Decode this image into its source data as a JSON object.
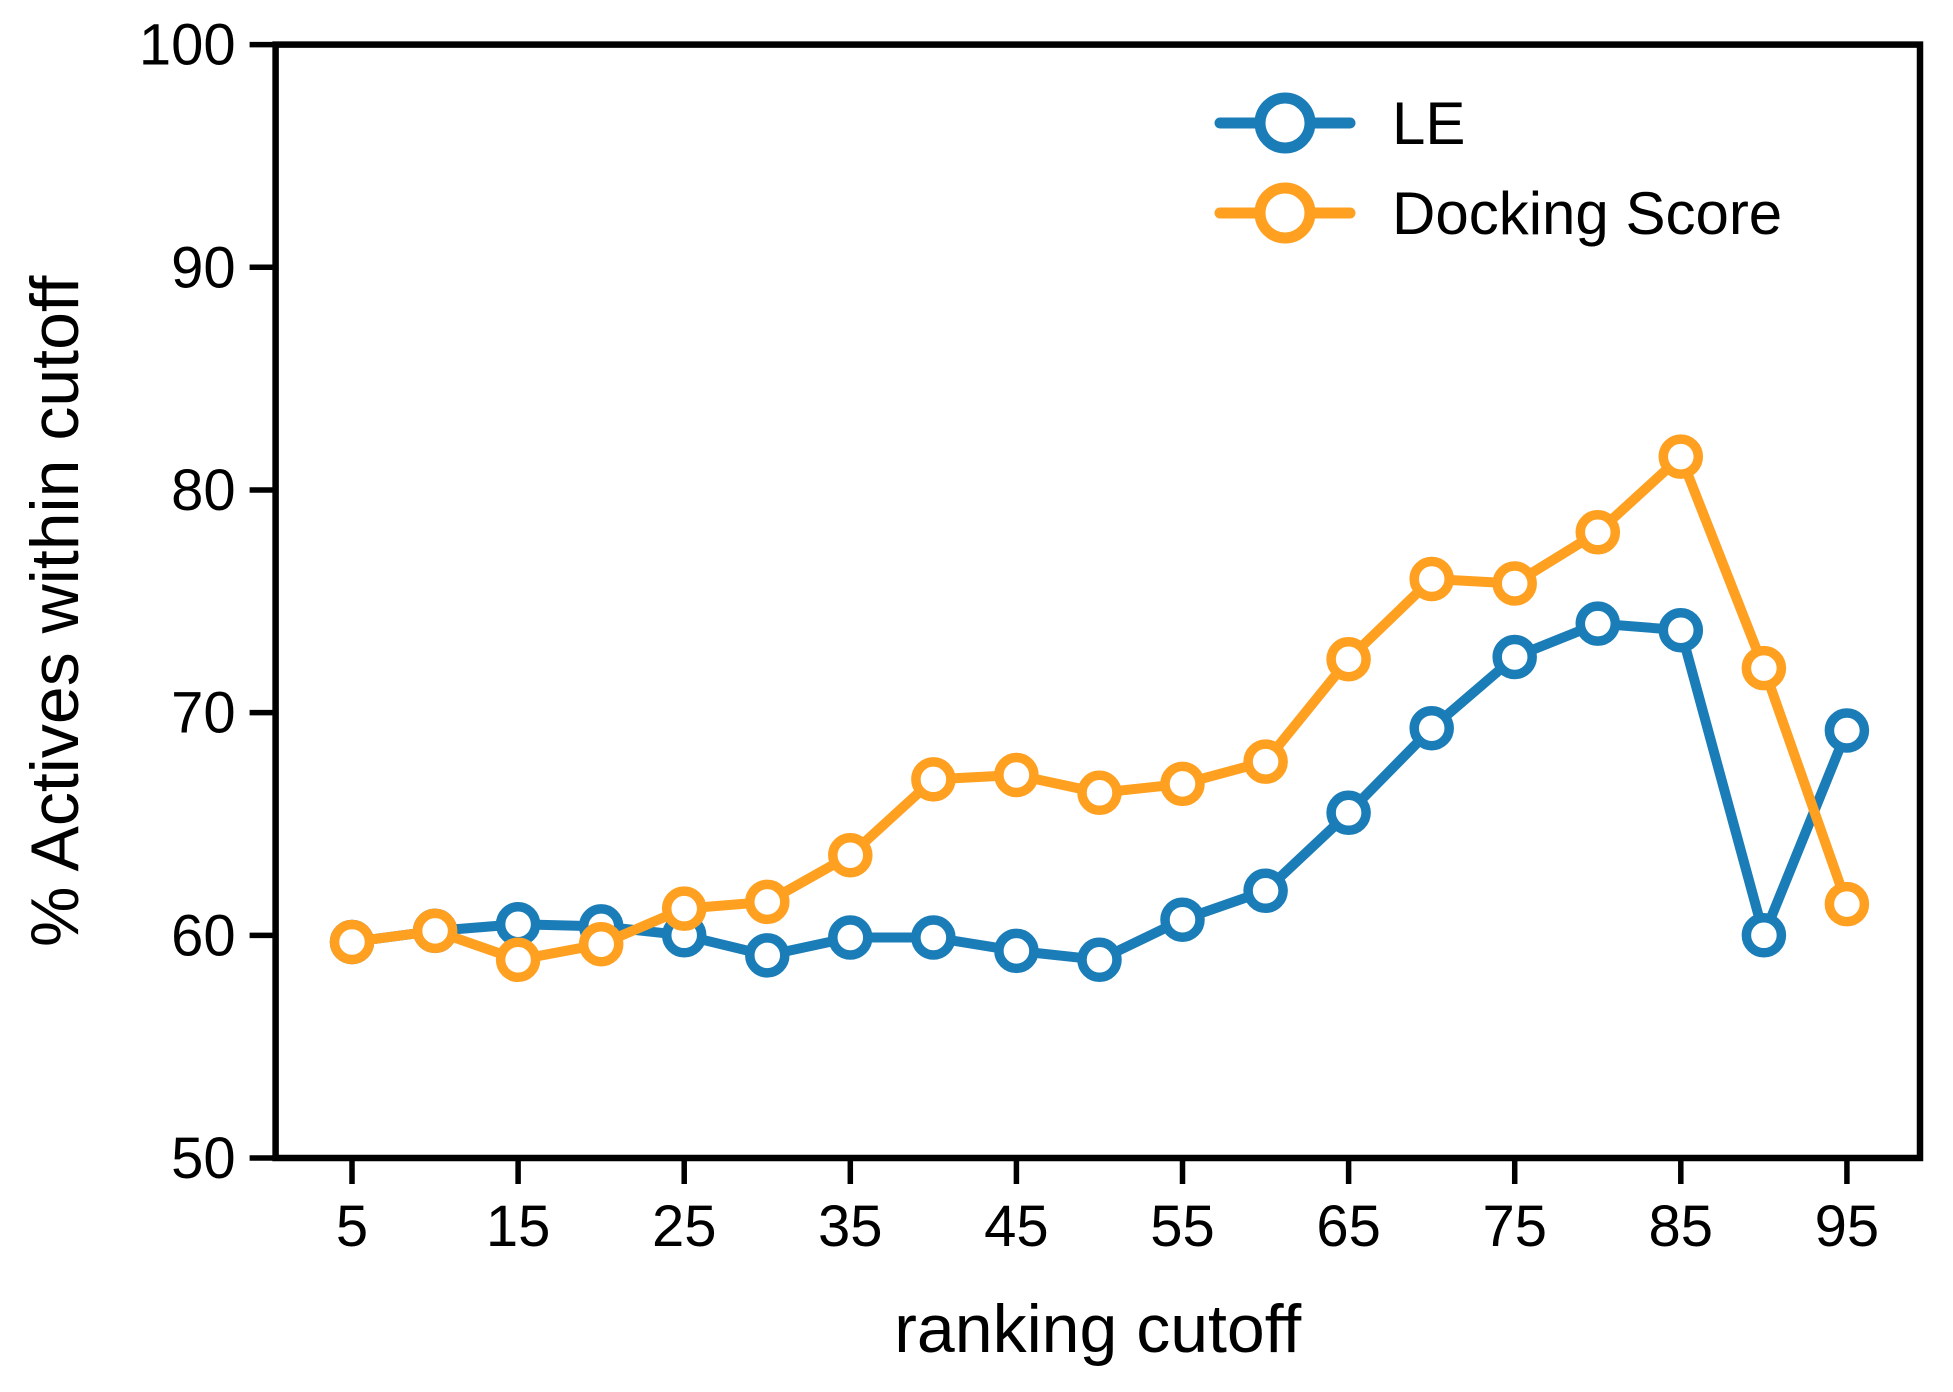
{
  "chart_data": {
    "type": "line",
    "title": "",
    "xlabel": "ranking cutoff",
    "ylabel": "% Actives within cutoff",
    "x": [
      5,
      10,
      15,
      20,
      25,
      30,
      35,
      40,
      45,
      50,
      55,
      60,
      65,
      70,
      75,
      80,
      85,
      90,
      95
    ],
    "series": [
      {
        "name": "LE",
        "color": "#1b7db8",
        "marker": "open-circle",
        "values": [
          59.7,
          60.2,
          60.5,
          60.4,
          60.0,
          59.1,
          59.9,
          59.9,
          59.3,
          58.9,
          60.7,
          62.0,
          65.5,
          69.3,
          72.5,
          74.0,
          73.7,
          60.0,
          69.2
        ]
      },
      {
        "name": "Docking Score",
        "color": "#ffa020",
        "marker": "open-circle",
        "values": [
          59.7,
          60.2,
          58.9,
          59.6,
          61.2,
          61.5,
          63.6,
          67.0,
          67.2,
          66.4,
          66.8,
          67.8,
          72.4,
          76.0,
          75.8,
          78.1,
          81.5,
          72.0,
          61.4
        ]
      }
    ],
    "xticks": [
      5,
      15,
      25,
      35,
      45,
      55,
      65,
      75,
      85,
      95
    ],
    "yticks": [
      50,
      60,
      70,
      80,
      90,
      100
    ],
    "xlim": [
      0.4,
      99.4
    ],
    "ylim": [
      50,
      100
    ],
    "grid": false,
    "frame": "full-box",
    "legend": {
      "position": "top-right-inside",
      "entries": [
        "LE",
        "Docking Score"
      ]
    },
    "axis_color": "#000000",
    "background_color": "#ffffff"
  }
}
